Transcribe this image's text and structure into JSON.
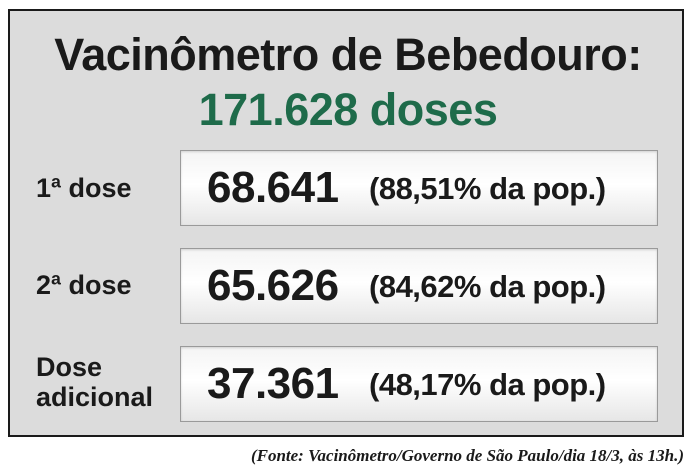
{
  "title": "Vacinômetro de Bebedouro:",
  "total": "171.628 doses",
  "rows": [
    {
      "label_line1": "1ª dose",
      "label_line2": "",
      "value": "68.641",
      "percent": "(88,51% da pop.)"
    },
    {
      "label_line1": "2ª dose",
      "label_line2": "",
      "value": "65.626",
      "percent": "(84,62% da pop.)"
    },
    {
      "label_line1": "Dose",
      "label_line2": "adicional",
      "value": "37.361",
      "percent": "(48,17% da pop.)"
    }
  ],
  "source": "(Fonte: Vacinômetro/Governo de São Paulo/dia 18/3, às 13h.)",
  "colors": {
    "background": "#dcdcdc",
    "total_green": "#1e6b4a",
    "text": "#1a1a1a"
  }
}
